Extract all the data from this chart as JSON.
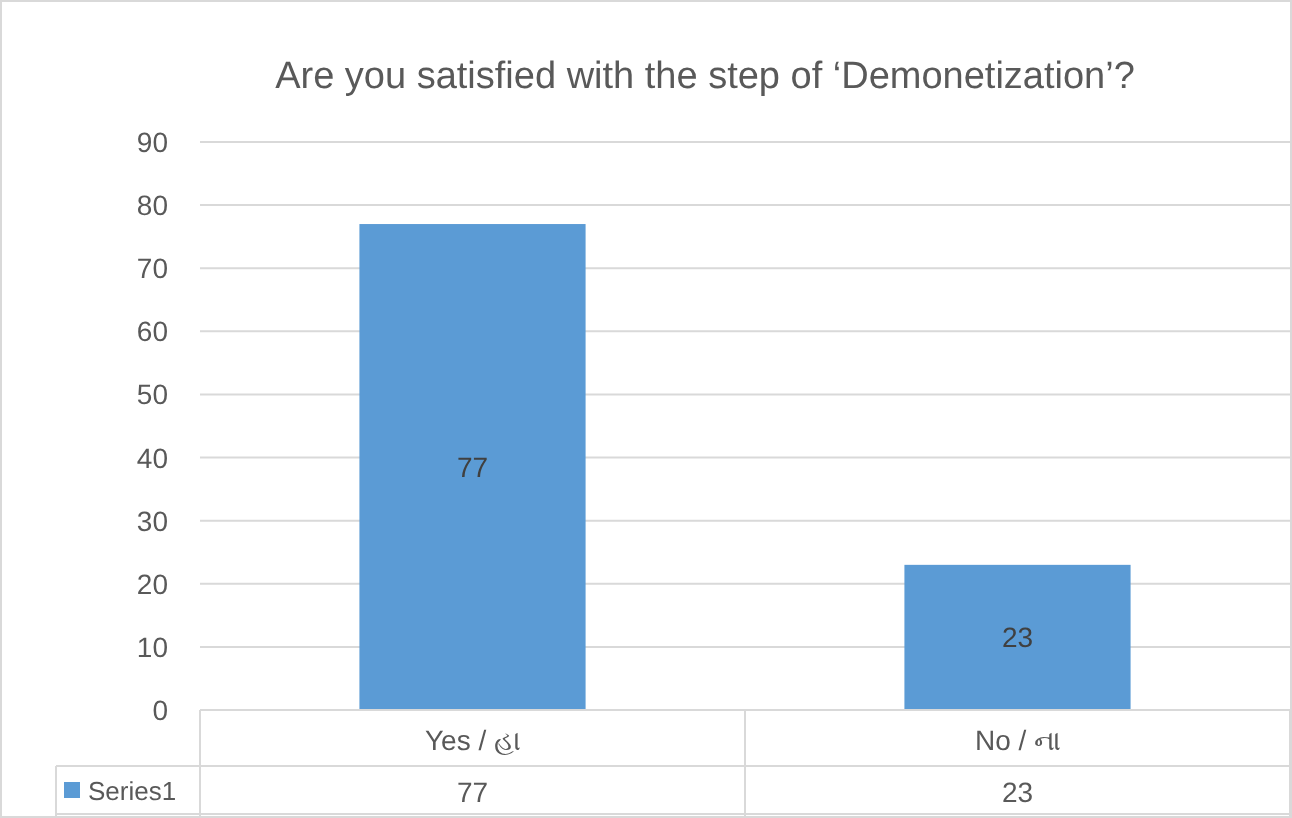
{
  "chart_data": {
    "type": "bar",
    "title": "Are you satisfied with the step of ‘Demonetization’?",
    "categories": [
      "Yes / હા",
      "No / ના"
    ],
    "series": [
      {
        "name": "Series1",
        "color": "#5b9bd5",
        "values": [
          77,
          23
        ],
        "value_labels": [
          "77",
          "23"
        ]
      }
    ],
    "ylim": [
      0,
      90
    ],
    "yticks": [
      0,
      10,
      20,
      30,
      40,
      50,
      60,
      70,
      80,
      90
    ],
    "annotations": [
      "77",
      "23"
    ],
    "grid": "y",
    "legend": "bottom left"
  }
}
